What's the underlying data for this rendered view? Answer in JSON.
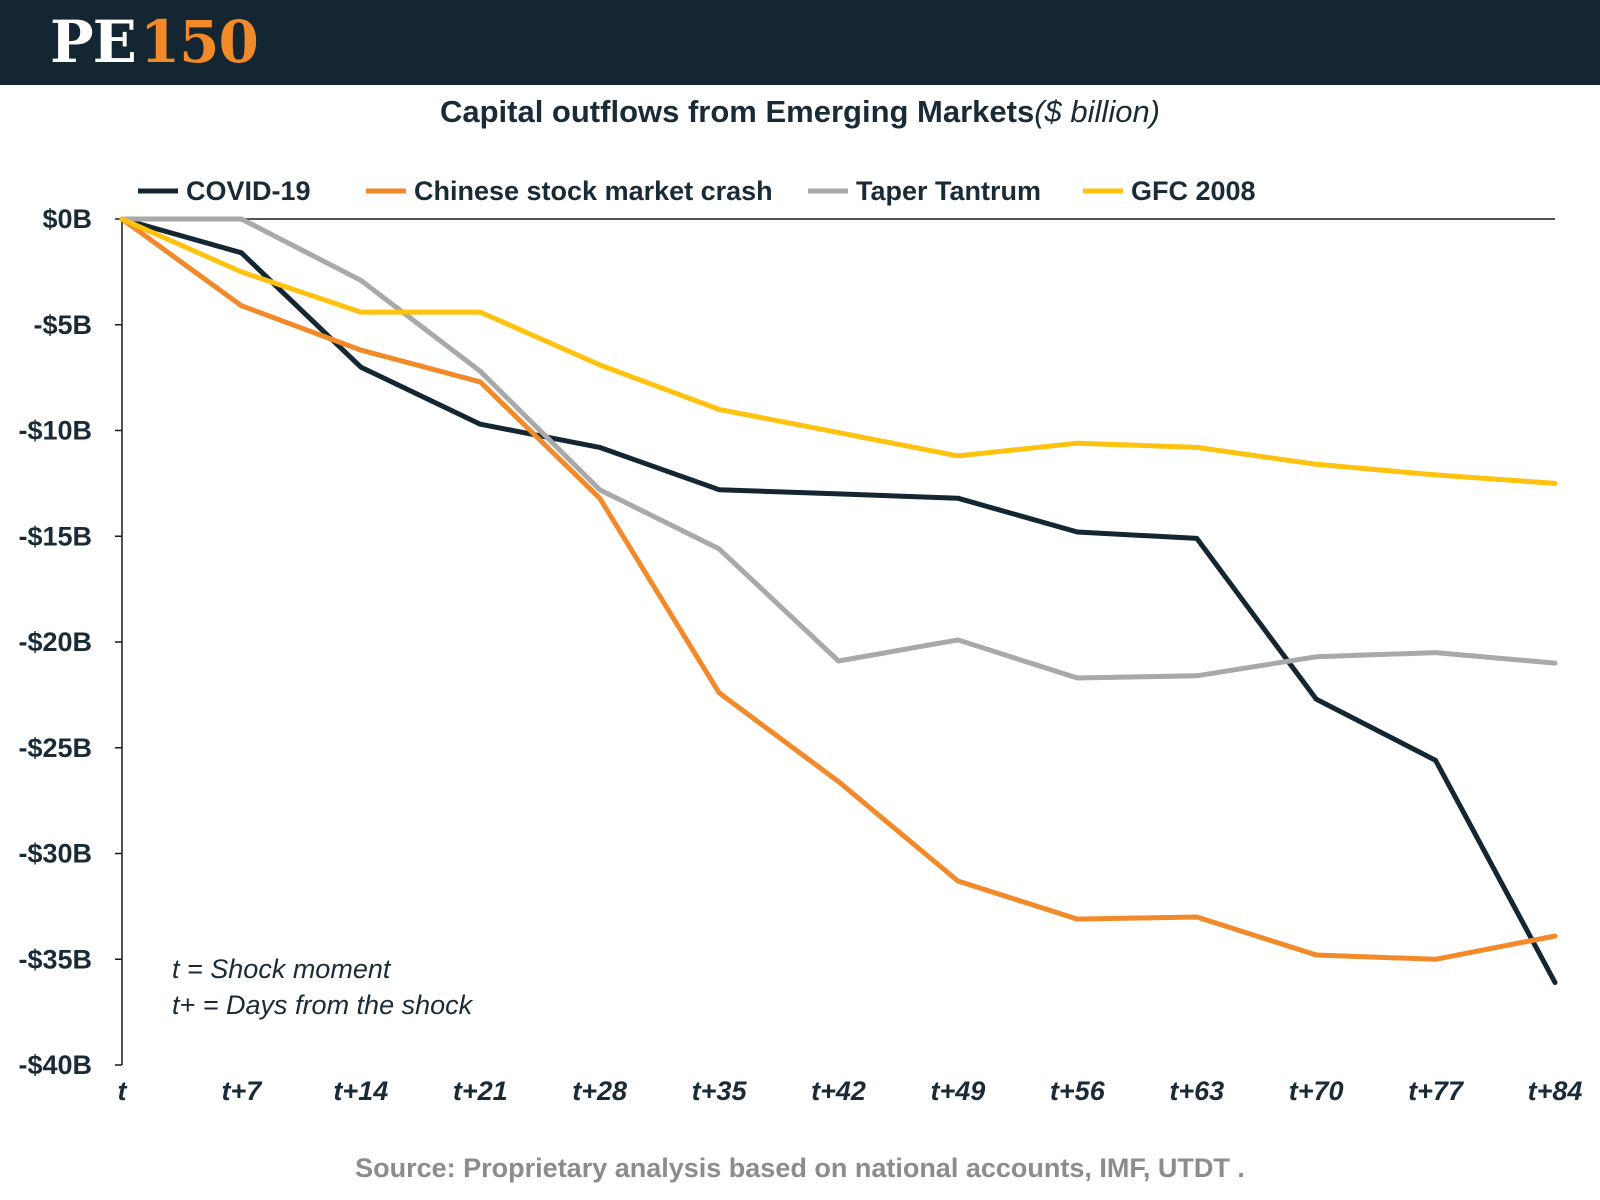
{
  "brand": {
    "logo_text_1": "PE",
    "logo_text_2": "150",
    "accent": "#f28a2a",
    "header_bg": "#132632"
  },
  "title": {
    "main": "Capital outflows from Emerging Markets",
    "unit": "($ billion)"
  },
  "source": "Source: Proprietary analysis based on national accounts, IMF, UTDT .",
  "chart_data": {
    "type": "line",
    "categories": [
      "t",
      "t+7",
      "t+14",
      "t+21",
      "t+28",
      "t+35",
      "t+42",
      "t+49",
      "t+56",
      "t+63",
      "t+70",
      "t+77",
      "t+84"
    ],
    "ylim": [
      -40,
      0
    ],
    "yticks": [
      0,
      -5,
      -10,
      -15,
      -20,
      -25,
      -30,
      -35,
      -40
    ],
    "ytick_labels": [
      "$0B",
      "-$5B",
      "-$10B",
      "-$15B",
      "-$20B",
      "-$25B",
      "-$30B",
      "-$35B",
      "-$40B"
    ],
    "legend_position": "top",
    "series": [
      {
        "name": "COVID-19",
        "color": "#132632",
        "values": [
          0,
          -1.6,
          -7.0,
          -9.7,
          -10.8,
          -12.8,
          -13.0,
          -13.2,
          -14.8,
          -15.1,
          -22.7,
          -25.6,
          -36.1
        ]
      },
      {
        "name": "Chinese stock market crash",
        "color": "#f28a2a",
        "values": [
          0,
          -4.1,
          -6.2,
          -7.7,
          -13.2,
          -22.4,
          -26.6,
          -31.3,
          -33.1,
          -33.0,
          -34.8,
          -35.0,
          -33.9
        ]
      },
      {
        "name": "Taper Tantrum",
        "color": "#a9a9a9",
        "values": [
          0,
          0,
          -2.9,
          -7.2,
          -12.8,
          -15.6,
          -20.9,
          -19.9,
          -21.7,
          -21.6,
          -20.7,
          -20.5,
          -21.0
        ]
      },
      {
        "name": "GFC 2008",
        "color": "#ffc20e",
        "values": [
          0,
          -2.5,
          -4.4,
          -4.4,
          -6.9,
          -9.0,
          -10.1,
          -11.2,
          -10.6,
          -10.8,
          -11.6,
          -12.1,
          -12.5
        ]
      }
    ],
    "annotation": [
      "t = Shock moment",
      "t+ = Days from the shock"
    ]
  }
}
